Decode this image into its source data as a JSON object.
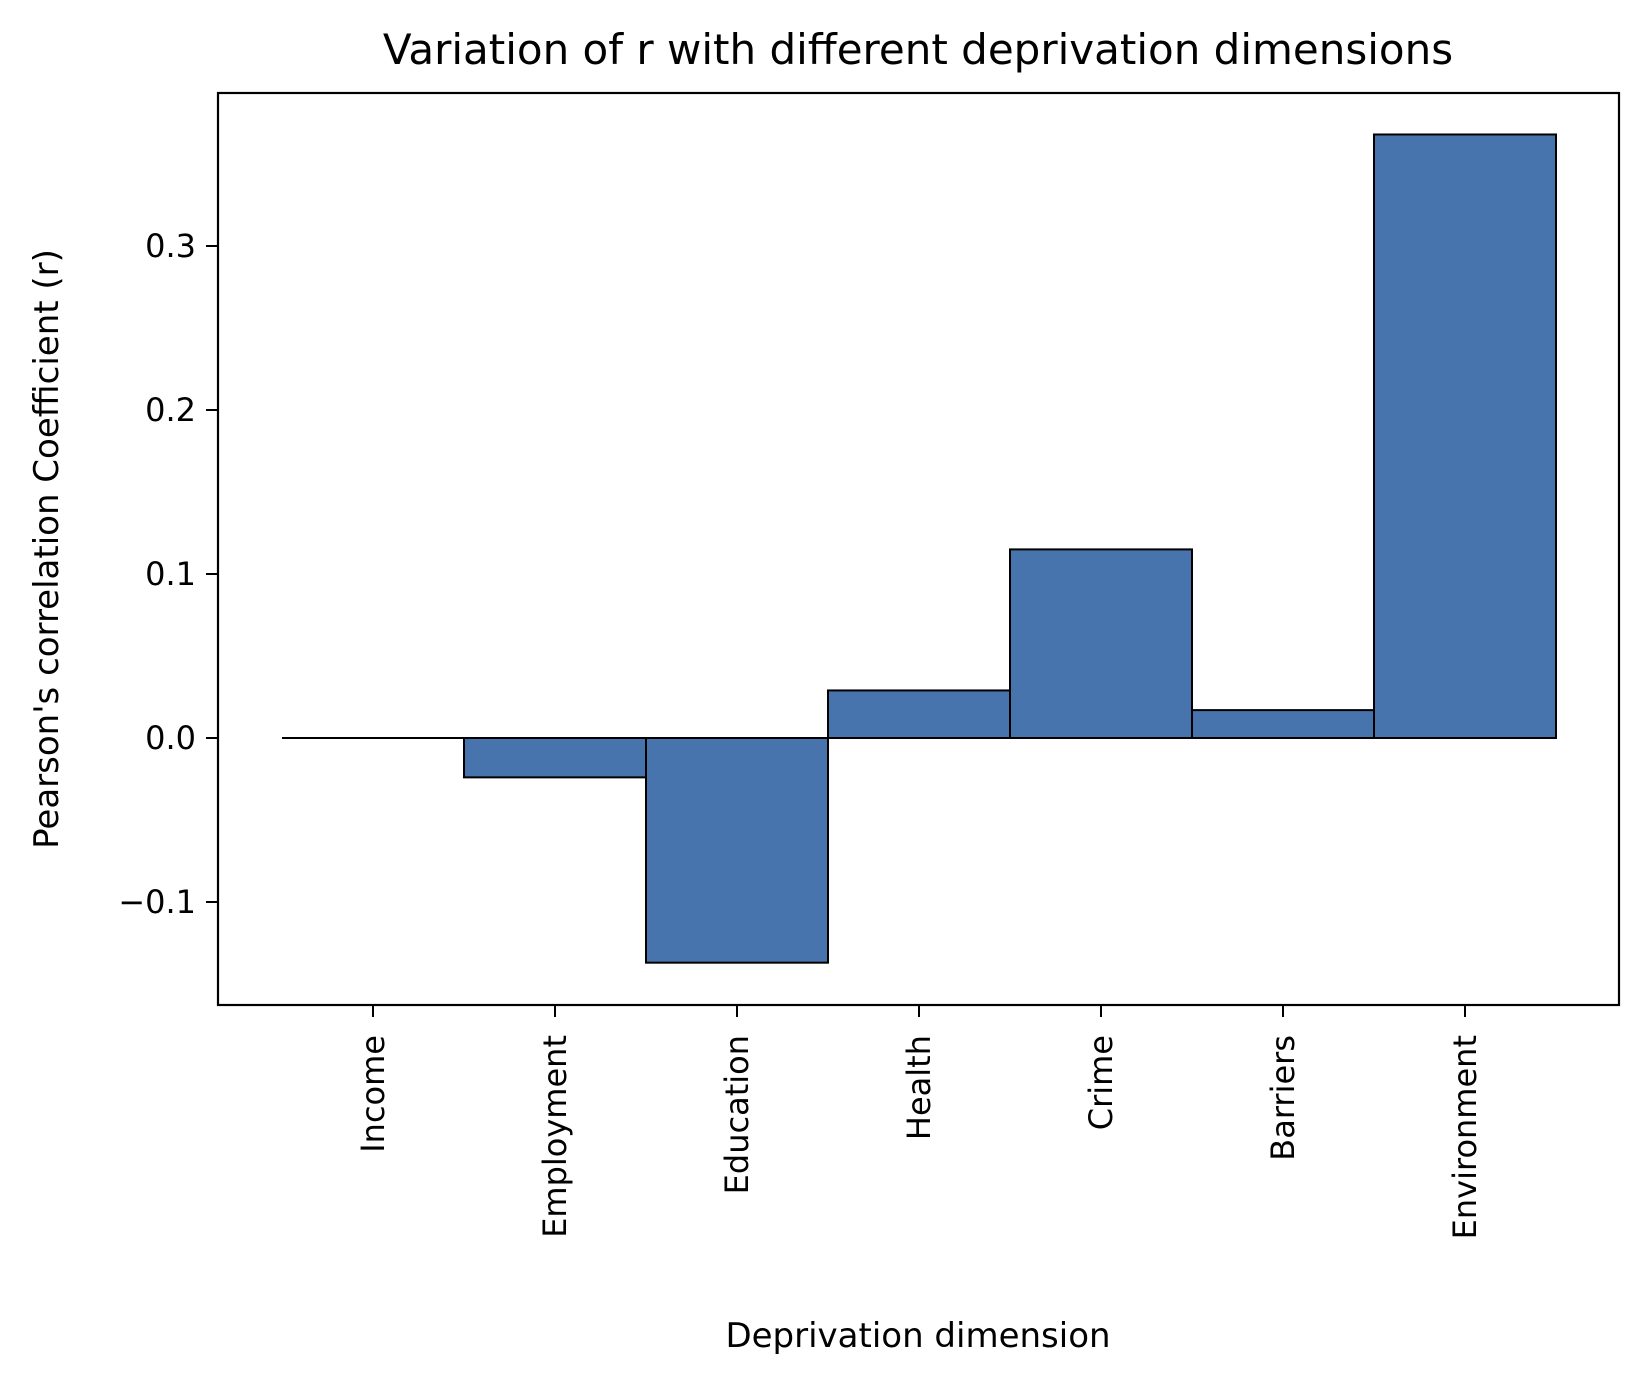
{
  "chart_data": {
    "type": "bar",
    "title": "Variation of r with different deprivation dimensions",
    "xlabel": "Deprivation dimension",
    "ylabel": "Pearson's correlation Coefficient (r)",
    "categories": [
      "Income",
      "Employment",
      "Education",
      "Health",
      "Crime",
      "Barriers",
      "Environment"
    ],
    "values": [
      0.0,
      -0.024,
      -0.137,
      0.029,
      0.115,
      0.017,
      0.368
    ],
    "ylim": [
      -0.162,
      0.394
    ],
    "yticks": [
      -0.1,
      0.0,
      0.1,
      0.2,
      0.3
    ],
    "ytick_labels": [
      "−0.1",
      "0.0",
      "0.1",
      "0.2",
      "0.3"
    ],
    "bar_color": "#4874ae",
    "grid": false,
    "legend": "none"
  }
}
